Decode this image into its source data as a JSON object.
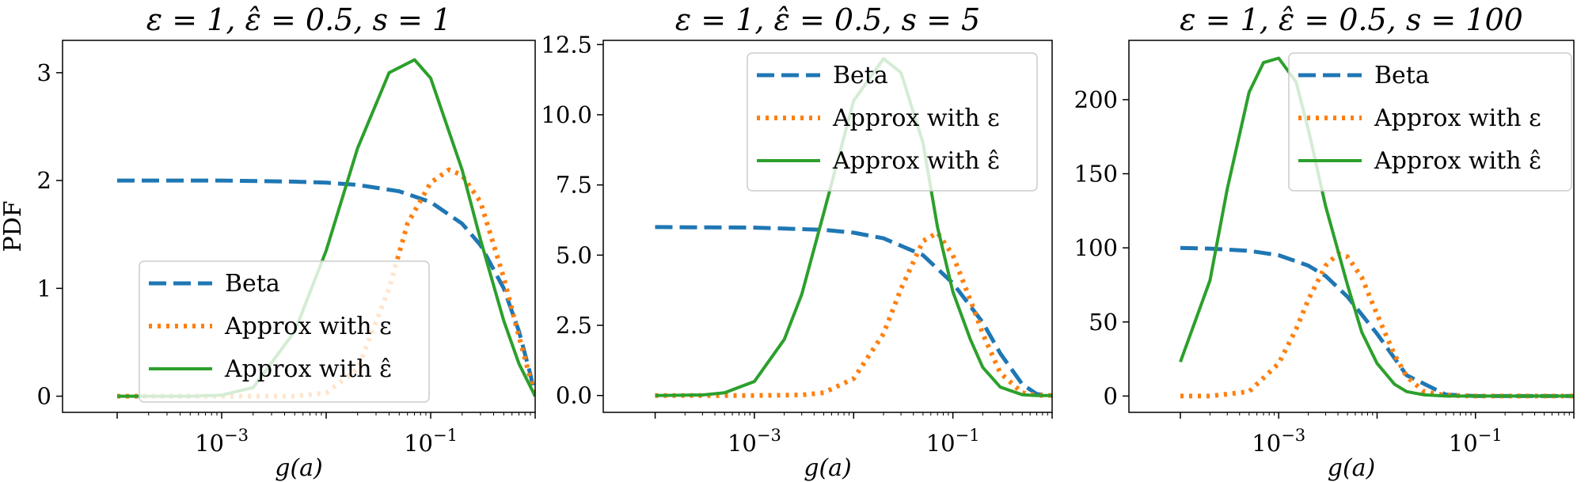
{
  "figure": {
    "ylabel": "PDF"
  },
  "chart_data": [
    {
      "type": "line",
      "title": "ε = 1,   ε̂ = 0.5,   s = 1",
      "xlabel": "g(a)",
      "ylabel": "PDF",
      "xscale": "log",
      "xlim": [
        3e-05,
        1
      ],
      "ylim": [
        -0.15,
        3.3
      ],
      "x_ticks": [
        0.001,
        0.1
      ],
      "x_tick_labels": [
        "10^-3",
        "10^-1"
      ],
      "y_ticks": [
        0,
        1,
        2,
        3
      ],
      "y_tick_labels": [
        "0",
        "1",
        "2",
        "3"
      ],
      "legend": {
        "placement": "lower-center",
        "entries": [
          "Beta",
          "Approx with ε",
          "Approx with ε̂"
        ]
      },
      "series": [
        {
          "name": "Beta",
          "style": "dashed",
          "color": "#1f77b4",
          "x": [
            0.0001,
            0.001,
            0.005,
            0.01,
            0.02,
            0.05,
            0.1,
            0.2,
            0.3,
            0.5,
            0.7,
            0.9,
            1.0
          ],
          "y": [
            2.0,
            2.0,
            1.99,
            1.98,
            1.96,
            1.9,
            1.8,
            1.6,
            1.4,
            1.0,
            0.6,
            0.2,
            0.0
          ]
        },
        {
          "name": "Approx with ε",
          "style": "dotted",
          "color": "#ff7f0e",
          "x": [
            0.0001,
            0.001,
            0.005,
            0.01,
            0.02,
            0.04,
            0.06,
            0.1,
            0.15,
            0.2,
            0.3,
            0.5,
            0.7,
            1.0
          ],
          "y": [
            0.0,
            0.0,
            0.0,
            0.03,
            0.25,
            1.0,
            1.6,
            1.98,
            2.1,
            2.05,
            1.8,
            1.1,
            0.55,
            0.0
          ]
        },
        {
          "name": "Approx with ε̂",
          "style": "solid",
          "color": "#2ca02c",
          "x": [
            0.0001,
            0.0002,
            0.0005,
            0.001,
            0.002,
            0.005,
            0.01,
            0.02,
            0.04,
            0.07,
            0.1,
            0.2,
            0.3,
            0.5,
            0.7,
            1.0
          ],
          "y": [
            0.0,
            0.0,
            0.0,
            0.01,
            0.08,
            0.6,
            1.35,
            2.3,
            3.0,
            3.12,
            2.95,
            2.1,
            1.45,
            0.7,
            0.3,
            0.0
          ]
        }
      ]
    },
    {
      "type": "line",
      "title": "ε = 1,   ε̂ = 0.5,   s = 5",
      "xlabel": "g(a)",
      "ylabel": "",
      "xscale": "log",
      "xlim": [
        3e-05,
        1
      ],
      "ylim": [
        -0.6,
        12.65
      ],
      "x_ticks": [
        0.001,
        0.1
      ],
      "x_tick_labels": [
        "10^-3",
        "10^-1"
      ],
      "y_ticks": [
        0,
        2.5,
        5,
        7.5,
        10,
        12.5
      ],
      "y_tick_labels": [
        "0.0",
        "2.5",
        "5.0",
        "7.5",
        "10.0",
        "12.5"
      ],
      "legend": {
        "placement": "upper-right",
        "entries": [
          "Beta",
          "Approx with ε",
          "Approx with ε̂"
        ]
      },
      "series": [
        {
          "name": "Beta",
          "style": "dashed",
          "color": "#1f77b4",
          "x": [
            0.0001,
            0.001,
            0.005,
            0.01,
            0.02,
            0.05,
            0.1,
            0.2,
            0.3,
            0.5,
            0.7,
            1.0
          ],
          "y": [
            6.0,
            5.98,
            5.9,
            5.8,
            5.6,
            5.0,
            4.0,
            2.6,
            1.5,
            0.4,
            0.05,
            0.0
          ]
        },
        {
          "name": "Approx with ε",
          "style": "dotted",
          "color": "#ff7f0e",
          "x": [
            0.0001,
            0.001,
            0.003,
            0.005,
            0.01,
            0.02,
            0.03,
            0.05,
            0.07,
            0.1,
            0.15,
            0.2,
            0.3,
            0.5,
            0.7,
            1.0
          ],
          "y": [
            0.0,
            0.0,
            0.02,
            0.1,
            0.6,
            2.2,
            3.8,
            5.5,
            5.8,
            5.0,
            3.4,
            2.2,
            0.8,
            0.1,
            0.01,
            0.0
          ]
        },
        {
          "name": "Approx with ε̂",
          "style": "solid",
          "color": "#2ca02c",
          "x": [
            0.0001,
            0.0003,
            0.0005,
            0.001,
            0.002,
            0.003,
            0.005,
            0.01,
            0.02,
            0.03,
            0.05,
            0.07,
            0.1,
            0.15,
            0.2,
            0.3,
            0.5,
            0.7,
            1.0
          ],
          "y": [
            0.0,
            0.02,
            0.1,
            0.5,
            2.0,
            3.6,
            6.5,
            10.5,
            12.0,
            11.5,
            9.0,
            6.0,
            3.7,
            2.0,
            1.0,
            0.3,
            0.03,
            0.0,
            0.0
          ]
        }
      ]
    },
    {
      "type": "line",
      "title": "ε = 1,   ε̂ = 0.5,   s = 100",
      "xlabel": "g(a)",
      "ylabel": "",
      "xscale": "log",
      "xlim": [
        3e-05,
        1
      ],
      "ylim": [
        -11,
        240
      ],
      "x_ticks": [
        0.001,
        0.1
      ],
      "x_tick_labels": [
        "10^-3",
        "10^-1"
      ],
      "y_ticks": [
        0,
        50,
        100,
        150,
        200
      ],
      "y_tick_labels": [
        "0",
        "50",
        "100",
        "150",
        "200"
      ],
      "legend": {
        "placement": "upper-right",
        "entries": [
          "Beta",
          "Approx with ε",
          "Approx with ε̂"
        ]
      },
      "series": [
        {
          "name": "Beta",
          "style": "dashed",
          "color": "#1f77b4",
          "x": [
            0.0001,
            0.0002,
            0.0005,
            0.001,
            0.002,
            0.003,
            0.005,
            0.01,
            0.02,
            0.05,
            0.1,
            0.2,
            1.0
          ],
          "y": [
            100,
            99.5,
            98,
            95,
            88,
            81,
            67,
            42,
            14,
            1,
            0,
            0,
            0
          ]
        },
        {
          "name": "Approx with ε",
          "style": "dotted",
          "color": "#ff7f0e",
          "x": [
            0.0001,
            0.0002,
            0.0005,
            0.001,
            0.0015,
            0.002,
            0.003,
            0.004,
            0.005,
            0.007,
            0.01,
            0.015,
            0.02,
            0.03,
            0.05,
            0.1,
            1.0
          ],
          "y": [
            0,
            0,
            3,
            22,
            45,
            65,
            88,
            96,
            94,
            80,
            55,
            28,
            13,
            3,
            0.5,
            0,
            0
          ]
        },
        {
          "name": "Approx with ε̂",
          "style": "solid",
          "color": "#2ca02c",
          "x": [
            0.0001,
            0.0002,
            0.0003,
            0.0005,
            0.0007,
            0.001,
            0.0015,
            0.002,
            0.003,
            0.005,
            0.007,
            0.01,
            0.015,
            0.02,
            0.03,
            0.05,
            0.1,
            1.0
          ],
          "y": [
            23,
            78,
            140,
            205,
            225,
            228,
            212,
            180,
            128,
            75,
            43,
            22,
            8,
            3,
            0.8,
            0,
            0,
            0
          ]
        }
      ]
    }
  ]
}
